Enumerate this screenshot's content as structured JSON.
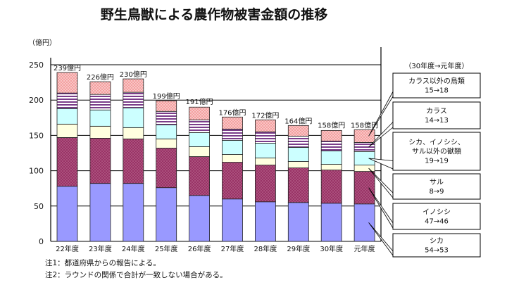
{
  "chart_data": {
    "type": "bar",
    "stacked": true,
    "title": "野生鳥獣による農作物被害金額の推移",
    "ylabel": "（億円）",
    "ylim": [
      0,
      250
    ],
    "yticks": [
      0,
      50,
      100,
      150,
      200,
      250
    ],
    "grid": true,
    "categories": [
      "22年度",
      "23年度",
      "24年度",
      "25年度",
      "26年度",
      "27年度",
      "28年度",
      "29年度",
      "30年度",
      "元年度"
    ],
    "totals": [
      239,
      226,
      230,
      199,
      191,
      176,
      172,
      164,
      158,
      158
    ],
    "total_labels": [
      "239億円",
      "226億円",
      "230億円",
      "199億円",
      "191億円",
      "176億円",
      "172億円",
      "164億円",
      "158億円",
      "158億円"
    ],
    "series": [
      {
        "name": "シカ",
        "color": "#9999ff",
        "pattern": "solid",
        "values": [
          78,
          82,
          82,
          76,
          65,
          60,
          56,
          55,
          54,
          53
        ]
      },
      {
        "name": "イノシシ",
        "color": "#993366",
        "pattern": "dots",
        "values": [
          69,
          64,
          63,
          56,
          55,
          52,
          52,
          49,
          47,
          46
        ]
      },
      {
        "name": "サル",
        "color": "#ffffe0",
        "pattern": "solid",
        "values": [
          19,
          17,
          16,
          13,
          14,
          11,
          10,
          9,
          8,
          9
        ]
      },
      {
        "name": "シカ、イノシシ、サル以外の獣類",
        "color": "#ccffff",
        "pattern": "solid",
        "values": [
          22,
          23,
          28,
          20,
          20,
          20,
          21,
          20,
          19,
          19
        ]
      },
      {
        "name": "カラス",
        "color": "#cc99ff",
        "pattern": "stripes",
        "values": [
          22,
          22,
          22,
          19,
          18,
          16,
          16,
          16,
          14,
          13
        ]
      },
      {
        "name": "カラス以外の鳥類",
        "color": "#ff9999",
        "pattern": "dots",
        "values": [
          29,
          18,
          19,
          15,
          18,
          17,
          17,
          15,
          15,
          18
        ]
      }
    ],
    "legend": {
      "placement": "right",
      "header": "（30年度→元年度）",
      "items": [
        {
          "label": "カラス以外の鳥類",
          "change": "15→18"
        },
        {
          "label": "カラス",
          "change": "14→13"
        },
        {
          "label": "シカ、イノシシ、サル以外の獣類",
          "label_lines": [
            "シカ、イノシシ、",
            "サル以外の獣類"
          ],
          "change": "19→19"
        },
        {
          "label": "サル",
          "change": "8→9"
        },
        {
          "label": "イノシシ",
          "change": "47→46"
        },
        {
          "label": "シカ",
          "change": "54→53"
        }
      ]
    }
  },
  "notes": [
    "注1：都道府県からの報告による。",
    "注2：ラウンドの関係で合計が一致しない場合がある。"
  ]
}
